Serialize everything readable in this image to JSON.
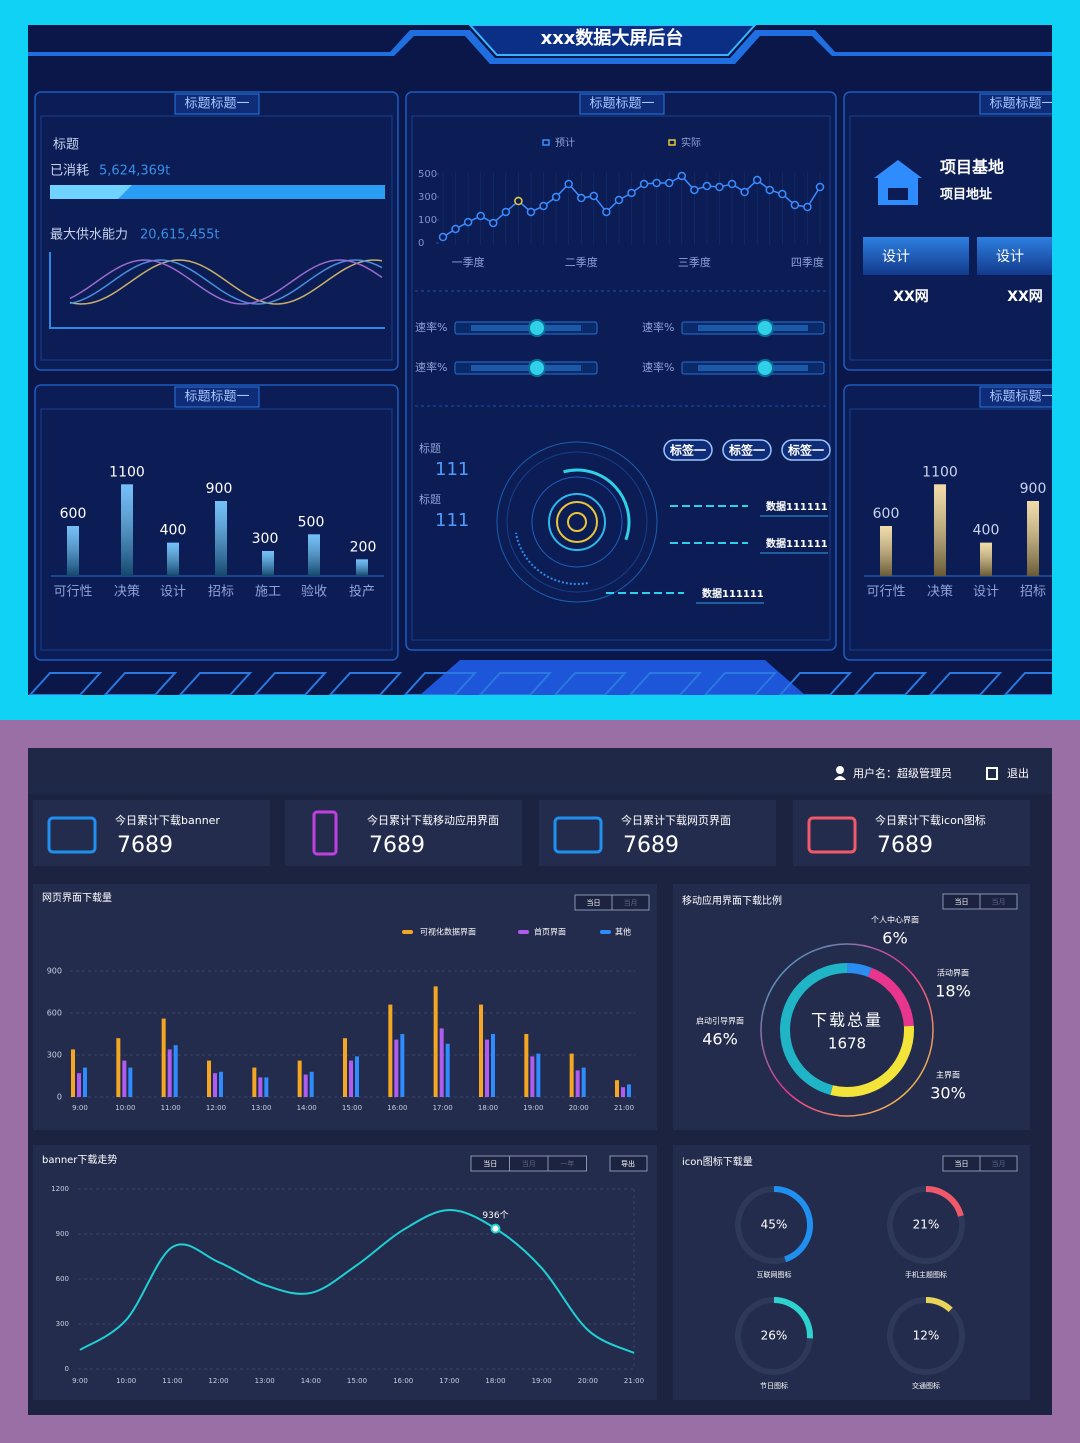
{
  "top_dashboard": {
    "title": "xxx数据大屏后台",
    "panel_consumption": {
      "title": "标题标题一",
      "label": "标题",
      "used_label": "已消耗",
      "used_value": "5,624,369t",
      "capacity_label": "最大供水能力",
      "capacity_value": "20,615,455t"
    },
    "panel_trend": {
      "title": "标题标题一",
      "chart_data": {
        "type": "line",
        "categories": [
          null,
          null,
          "一季度",
          null,
          null,
          null,
          null,
          null,
          null,
          null,
          null,
          "二季度",
          null,
          null,
          null,
          null,
          null,
          null,
          null,
          null,
          "三季度",
          null,
          null,
          null,
          null,
          null,
          null,
          null,
          null,
          "四季度",
          null
        ],
        "series": [
          {
            "name": "预计",
            "color": "#3b8cff",
            "values": [
              26,
              61,
              91,
              135,
              87,
              170,
              265,
              170,
              222,
              300,
              413,
              291,
              309,
              170,
              274,
              335,
              413,
              422,
              422,
              483,
              361,
              396,
              387,
              413,
              343,
              448,
              361,
              326,
              230,
              213,
              387
            ]
          },
          {
            "name": "实际",
            "color": "#e8c53a",
            "values": [
              null,
              null,
              null,
              null,
              null,
              null,
              265,
              null,
              null,
              null,
              null,
              null,
              null,
              null,
              null,
              null,
              null,
              null,
              null,
              null,
              null,
              null,
              null,
              null,
              null,
              null,
              null,
              null,
              null,
              null,
              null
            ]
          }
        ],
        "ylim": [
          0,
          500
        ],
        "yticks": [
          0,
          100,
          300,
          500
        ]
      },
      "sliders": [
        "速率%",
        "速率%",
        "速率%",
        "速率%"
      ],
      "radar": {
        "stats": [
          {
            "label": "标题",
            "value": 111
          },
          {
            "label": "标题",
            "value": 111
          }
        ],
        "tags": [
          "标签一",
          "标签一",
          "标签一"
        ],
        "data_labels": [
          "数据111111",
          "数据111111",
          "数据111111"
        ]
      }
    },
    "panel_project": {
      "title": "标题标题一",
      "name": "项目基地",
      "address": "项目地址",
      "buttons": [
        "设计",
        "设计"
      ],
      "sites": [
        "XX网",
        "XX网"
      ]
    },
    "panel_bars_left": {
      "title": "标题标题一",
      "chart_data": {
        "type": "bar",
        "categories": [
          "可行性",
          "决策",
          "设计",
          "招标",
          "施工",
          "验收",
          "投产"
        ],
        "values": [
          600,
          1100,
          400,
          900,
          300,
          500,
          200
        ],
        "ylim": [
          0,
          1200
        ],
        "color": "#2a9df4"
      }
    },
    "panel_bars_right": {
      "title": "标题标题一",
      "chart_data": {
        "type": "bar",
        "categories": [
          "可行性",
          "决策",
          "设计",
          "招标"
        ],
        "values": [
          600,
          1100,
          400,
          900
        ],
        "ylim": [
          0,
          1200
        ],
        "color": "#e9c97a"
      }
    }
  },
  "bottom_dashboard": {
    "user": "用户名：超级管理员",
    "logout": "退出",
    "stats": [
      {
        "label": "今日累计下载banner",
        "value": 7689
      },
      {
        "label": "今日累计下载移动应用界面",
        "value": 7689
      },
      {
        "label": "今日累计下载网页界面",
        "value": 7689
      },
      {
        "label": "今日累计下载icon图标",
        "value": 7689
      }
    ],
    "web_downloads": {
      "title": "网页界面下载量",
      "buttons": [
        "当日",
        "当月"
      ],
      "chart_data": {
        "type": "bar",
        "categories": [
          "9:00",
          "10:00",
          "11:00",
          "12:00",
          "13:00",
          "14:00",
          "15:00",
          "16:00",
          "17:00",
          "18:00",
          "19:00",
          "20:00",
          "21:00"
        ],
        "series": [
          {
            "name": "可视化数据界面",
            "color": "#f5a623",
            "values": [
              340,
              420,
              560,
              260,
              210,
              260,
              420,
              660,
              790,
              660,
              450,
              310,
              120
            ]
          },
          {
            "name": "首页界面",
            "color": "#b15cf0",
            "values": [
              170,
              260,
              340,
              170,
              140,
              160,
              260,
              410,
              490,
              410,
              290,
              190,
              70
            ]
          },
          {
            "name": "其他",
            "color": "#2f8cff",
            "values": [
              210,
              210,
              370,
              180,
              140,
              180,
              290,
              450,
              380,
              450,
              310,
              210,
              90
            ]
          }
        ],
        "ylim": [
          0,
          900
        ],
        "yticks": [
          0,
          300,
          600,
          900
        ],
        "grid": true
      }
    },
    "mobile_share": {
      "title": "移动应用界面下载比例",
      "buttons": [
        "当日",
        "当月"
      ],
      "center_label": "下载总量",
      "total": 1678,
      "chart_data": {
        "type": "donut",
        "categories": [
          "个人中心界面",
          "活动界面",
          "主界面",
          "启动引导界面"
        ],
        "values": [
          6,
          18,
          30,
          46
        ],
        "value_labels": [
          "6%",
          "18%",
          "30%",
          "46%"
        ],
        "colors": [
          "#2b8df0",
          "#e8358e",
          "#f2e43a",
          "#1fb5c7"
        ]
      }
    },
    "banner_trend": {
      "title": "banner下载走势",
      "buttons": [
        "当日",
        "当月",
        "一年"
      ],
      "export": "导出",
      "chart_data": {
        "type": "line",
        "categories": [
          "9:00",
          "10:00",
          "11:00",
          "12:00",
          "13:00",
          "14:00",
          "15:00",
          "16:00",
          "17:00",
          "18:00",
          "19:00",
          "20:00",
          "21:00"
        ],
        "values": [
          127,
          327,
          813,
          713,
          560,
          507,
          693,
          927,
          1060,
          936,
          673,
          260,
          107
        ],
        "value_labels": [
          null,
          null,
          null,
          null,
          null,
          null,
          null,
          null,
          null,
          "936个",
          null,
          null,
          null
        ],
        "ylim": [
          0,
          1200
        ],
        "yticks": [
          0,
          300,
          600,
          900,
          1200
        ],
        "color": "#1fd0d4",
        "grid": true
      }
    },
    "icon_downloads": {
      "title": "icon图标下载量",
      "buttons": [
        "当日",
        "当月"
      ],
      "chart_data": {
        "type": "gauge",
        "categories": [
          "互联网图标",
          "手机主题图标",
          "节日图标",
          "交通图标"
        ],
        "values": [
          45,
          21,
          26,
          12
        ],
        "value_labels": [
          "45%",
          "21%",
          "26%",
          "12%"
        ],
        "colors": [
          "#1f8ff0",
          "#f0596a",
          "#2ed3d0",
          "#e8d45a"
        ]
      }
    }
  }
}
